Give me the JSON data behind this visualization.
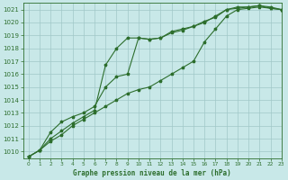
{
  "background_color": "#c8e8e8",
  "grid_color": "#a0c8c8",
  "line_color": "#2d6e2d",
  "xlabel": "Graphe pression niveau de la mer (hPa)",
  "xlim": [
    -0.5,
    23
  ],
  "ylim": [
    1009.5,
    1021.5
  ],
  "yticks": [
    1010,
    1011,
    1012,
    1013,
    1014,
    1015,
    1016,
    1017,
    1018,
    1019,
    1020,
    1021
  ],
  "xticks": [
    0,
    1,
    2,
    3,
    4,
    5,
    6,
    7,
    8,
    9,
    10,
    11,
    12,
    13,
    14,
    15,
    16,
    17,
    18,
    19,
    20,
    21,
    22,
    23
  ],
  "series": [
    [
      1009.6,
      1010.1,
      1011.0,
      1011.6,
      1012.2,
      1012.7,
      1013.2,
      1016.7,
      1018.0,
      1018.8,
      1018.8,
      1018.7,
      1018.8,
      1019.3,
      1019.5,
      1019.7,
      1020.0,
      1020.5,
      1021.0,
      1021.2,
      1021.2,
      1021.3,
      1021.1,
      1021.0
    ],
    [
      1009.6,
      1010.1,
      1011.5,
      1012.3,
      1012.7,
      1013.0,
      1013.5,
      1015.0,
      1015.8,
      1016.0,
      1018.8,
      1018.7,
      1018.8,
      1019.2,
      1019.4,
      1019.7,
      1020.1,
      1020.4,
      1021.0,
      1021.1,
      1021.2,
      1021.3,
      1021.2,
      1021.0
    ],
    [
      1009.6,
      1010.1,
      1010.8,
      1011.3,
      1012.0,
      1012.5,
      1013.0,
      1013.5,
      1014.0,
      1014.5,
      1014.8,
      1015.0,
      1015.5,
      1016.0,
      1016.5,
      1017.0,
      1018.5,
      1019.5,
      1020.5,
      1021.0,
      1021.1,
      1021.2,
      1021.1,
      1021.0
    ]
  ],
  "xlabel_fontsize": 5.5,
  "ytick_fontsize": 5.0,
  "xtick_fontsize": 4.2,
  "marker_size": 2.5,
  "line_width": 0.8
}
